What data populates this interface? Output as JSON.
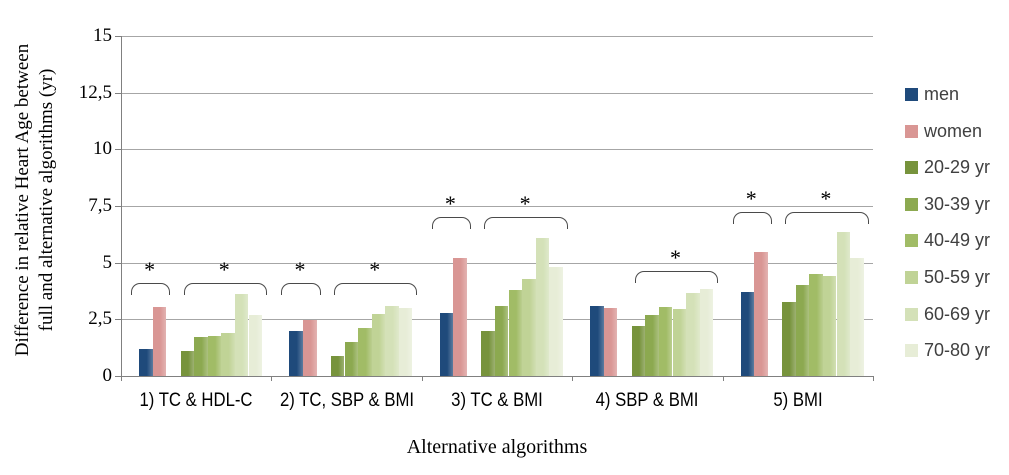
{
  "chart_data": {
    "type": "bar",
    "title": "",
    "xlabel": "Alternative algorithms",
    "ylabel": "Difference in relative Heart Age between full and alternative algorithms (yr)",
    "ylabel_lines": [
      "Difference in relative Heart Age between",
      "full and alternative algorithms  (yr)"
    ],
    "ylim": [
      0,
      15
    ],
    "ytick_values": [
      0,
      2.5,
      5,
      7.5,
      10,
      12.5,
      15
    ],
    "ytick_labels": [
      "0",
      "2,5",
      "5",
      "7,5",
      "10",
      "12,5",
      "15"
    ],
    "grid": "horizontal",
    "legend_position": "right",
    "categories": [
      "1) TC & HDL-C",
      "2) TC, SBP & BMI",
      "3) TC & BMI",
      "4) SBP & BMI",
      "5) BMI"
    ],
    "series": [
      {
        "name": "men",
        "group": "sexes",
        "color": "#1f4a7b",
        "values": [
          1.2,
          2.0,
          2.8,
          3.1,
          3.7
        ]
      },
      {
        "name": "women",
        "group": "sexes",
        "color": "#d99694",
        "values": [
          3.05,
          2.45,
          5.2,
          3.0,
          5.45
        ]
      },
      {
        "name": "20-29 yr",
        "group": "ages",
        "color": "#77933c",
        "values": [
          1.1,
          0.9,
          2.0,
          2.2,
          3.25
        ]
      },
      {
        "name": "30-39 yr",
        "group": "ages",
        "color": "#8ca950",
        "values": [
          1.7,
          1.5,
          3.1,
          2.7,
          4.0
        ]
      },
      {
        "name": "40-49 yr",
        "group": "ages",
        "color": "#a1bc66",
        "values": [
          1.75,
          2.1,
          3.8,
          3.05,
          4.5
        ]
      },
      {
        "name": "50-59 yr",
        "group": "ages",
        "color": "#c0d396",
        "values": [
          1.9,
          2.75,
          4.3,
          2.95,
          4.4
        ]
      },
      {
        "name": "60-69 yr",
        "group": "ages",
        "color": "#d4e1b8",
        "values": [
          3.6,
          3.1,
          6.1,
          3.65,
          6.35
        ]
      },
      {
        "name": "70-80 yr",
        "group": "ages",
        "color": "#e7edd7",
        "values": [
          2.7,
          3.0,
          4.8,
          3.85,
          5.2
        ]
      }
    ],
    "significance_brackets": [
      {
        "category_index": 0,
        "span": "sexes",
        "top_value": 4.1,
        "label": "*"
      },
      {
        "category_index": 0,
        "span": "ages",
        "top_value": 4.1,
        "label": "*"
      },
      {
        "category_index": 1,
        "span": "sexes",
        "top_value": 4.1,
        "label": "*"
      },
      {
        "category_index": 1,
        "span": "ages",
        "top_value": 4.1,
        "label": "*"
      },
      {
        "category_index": 2,
        "span": "sexes",
        "top_value": 7.0,
        "label": "*"
      },
      {
        "category_index": 2,
        "span": "ages",
        "top_value": 7.0,
        "label": "*"
      },
      {
        "category_index": 3,
        "span": "ages",
        "top_value": 4.65,
        "label": "*"
      },
      {
        "category_index": 4,
        "span": "sexes",
        "top_value": 7.25,
        "label": "*"
      },
      {
        "category_index": 4,
        "span": "ages",
        "top_value": 7.25,
        "label": "*"
      }
    ],
    "colors": {
      "gridline": "#a6a6a6",
      "axis": "#808080",
      "bracket": "#4a4a4a",
      "text": "#000000",
      "legend_text": "#404040"
    }
  }
}
